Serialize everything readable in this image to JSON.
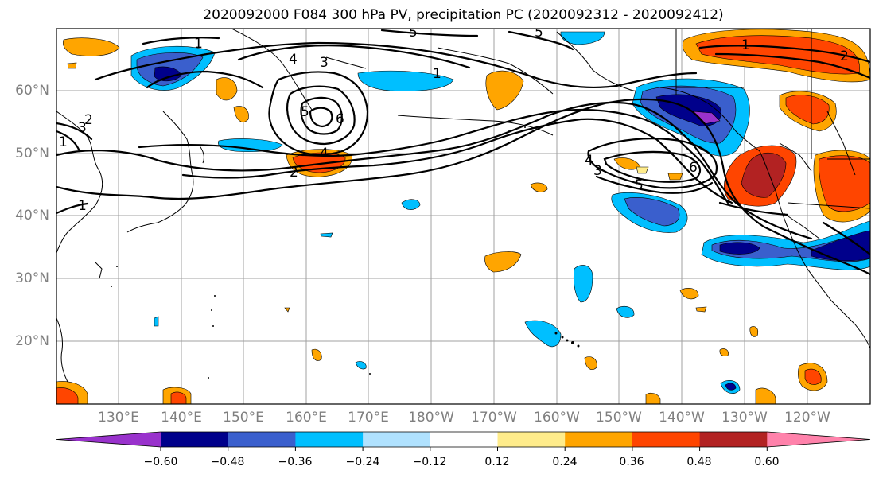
{
  "title": "2020092000 F084 300 hPa PV, precipitation PC (2020092312 - 2020092412)",
  "lat_labels": [
    "60°N",
    "50°N",
    "40°N",
    "30°N",
    "20°N"
  ],
  "lon_labels": [
    "130°E",
    "140°E",
    "150°E",
    "160°E",
    "170°E",
    "180°W",
    "170°W",
    "160°W",
    "150°W",
    "140°W",
    "130°W",
    "120°W"
  ],
  "colorbar": {
    "colors": [
      "#9932cc",
      "#00008b",
      "#3a5fcd",
      "#00bfff",
      "#b0e2ff",
      "#ffffff",
      "#ffec8b",
      "#ffa500",
      "#ff4500",
      "#b22222",
      "#ff82ab"
    ],
    "ticks": [
      "−0.60",
      "−0.48",
      "−0.36",
      "−0.24",
      "−0.12",
      "0.12",
      "0.24",
      "0.36",
      "0.48",
      "0.60"
    ]
  },
  "contour_labels": [
    "1",
    "4",
    "3",
    "5",
    "1",
    "5",
    "6",
    "4",
    "2",
    "1",
    "4",
    "3",
    "5",
    "6",
    "1",
    "2",
    "3",
    "2",
    "1",
    "5"
  ]
}
